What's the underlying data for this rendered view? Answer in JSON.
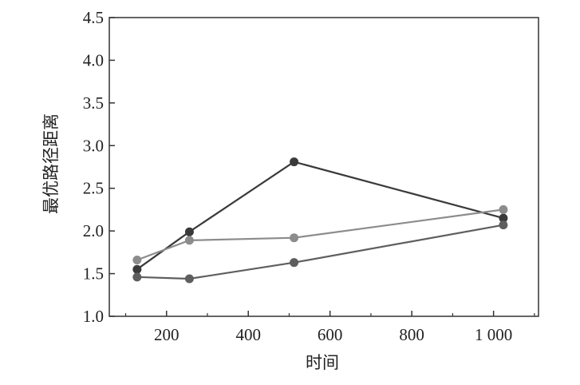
{
  "chart_data": {
    "type": "line",
    "xlabel": "时间",
    "ylabel": "最优路径距离",
    "xlim": [
      60,
      1110
    ],
    "ylim": [
      1.0,
      4.5
    ],
    "x_ticks": [
      200,
      400,
      600,
      800,
      1000
    ],
    "x_tick_labels": [
      "200",
      "400",
      "600",
      "800",
      "1 000"
    ],
    "y_ticks": [
      1.0,
      1.5,
      2.0,
      2.5,
      3.0,
      3.5,
      4.0,
      4.5
    ],
    "y_tick_labels": [
      "1.0",
      "1.5",
      "2.0",
      "2.5",
      "3.0",
      "3.5",
      "4.0",
      "4.5"
    ],
    "grid": false,
    "legend": "none",
    "x": [
      128,
      256,
      512,
      1024
    ],
    "series": [
      {
        "values": [
          1.55,
          1.99,
          2.81,
          2.15
        ],
        "color": "#3a3a3a"
      },
      {
        "values": [
          1.66,
          1.89,
          1.92,
          2.25
        ],
        "color": "#8c8c8c"
      },
      {
        "values": [
          1.46,
          1.44,
          1.63,
          2.07
        ],
        "color": "#5e5e5e"
      }
    ]
  }
}
